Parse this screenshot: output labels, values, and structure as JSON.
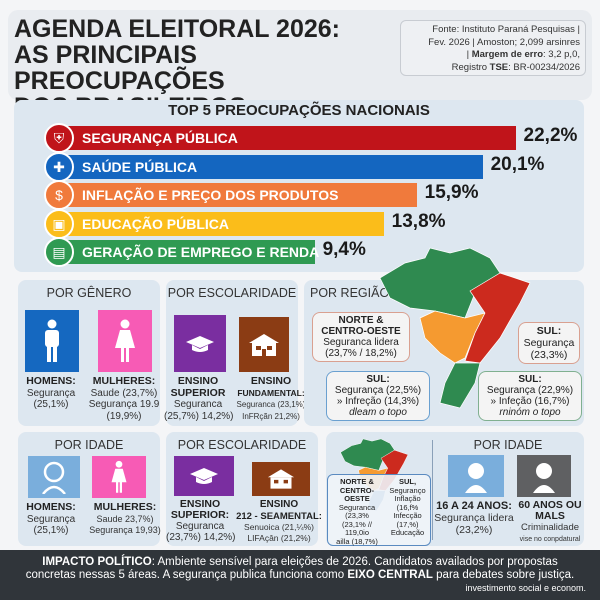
{
  "header": {
    "title_lines": [
      "AGENDA ELEITORAL 2026:",
      "AS PRINCIPAIS PREOCUPAÇÕES",
      "DOS BRASILEIROS"
    ],
    "source_line1": "Fonte: Instituto Paraná Pesquisas |",
    "source_line2": "Fev. 2026 | Amoston; 2,099 arsinres",
    "source_margin_label": "Margem de erro",
    "source_margin_value": ": 3,2 p,0,",
    "source_reg_prefix": "Registro ",
    "source_reg_label": "TSE",
    "source_reg_value": ": BR-00234/2026"
  },
  "chart_data": {
    "type": "bar",
    "title": "TOP 5 PREOCUPAÇÕES NACIONAIS",
    "categories": [
      "SEGURANÇA PÚBLICA",
      "SAÚDE PÚBLICA",
      "INFLAÇÃO E PREÇO DOS PRODUTOS",
      "EDUCAÇÃO PÚBLICA",
      "GERAÇÃO DE EMPREGO E RENDA"
    ],
    "values": [
      22.2,
      20.1,
      15.9,
      13.8,
      9.4
    ],
    "labels": [
      "22,2%",
      "20,1%",
      "15,9%",
      "13,8%",
      "9,4%"
    ],
    "colors": [
      "#c0141a",
      "#1466c0",
      "#f07a3c",
      "#fbbd1a",
      "#2f9a52"
    ],
    "icons": [
      "shield-icon",
      "medical-cross-icon",
      "money-bag-icon",
      "briefcase-icon",
      "cash-register-icon"
    ],
    "xlabel": "",
    "ylabel": ""
  },
  "genero": {
    "title": "POR GÊNERO",
    "homens_label": "HOMENS:",
    "homens_l1": "Segurança",
    "homens_l2": "(25,1%)",
    "mulheres_label": "MULHERES:",
    "mulheres_l1": "Saude (23,7%)",
    "mulheres_l2": "Segurança 19.9",
    "mulheres_l3": "(19,9%)"
  },
  "escolaridade": {
    "title": "POR ESCOLARIDADE",
    "sup_label1": "ENSINO",
    "sup_label2": "SUPERIOR",
    "sup_l1": "Seguranca",
    "sup_l2": "(25,7%) 14,2%)",
    "fund_label1": "ENSINO",
    "fund_label2": "FUNDAMENTAL:",
    "fund_l1": "Seguranca (23,1%)",
    "fund_l2": "InFRçãn 21,2%)"
  },
  "regiao": {
    "title": "POR REGIÃO",
    "norte_title1": "NORTE &",
    "norte_title2": "CENTRO-OESTE",
    "norte_l1": "Seguranca lidera",
    "norte_l2": "(23,7% / 18,2%)",
    "ne_title": "SUL:",
    "ne_l1": "Segurança",
    "ne_l2": "(23,3%)",
    "sul1_title": "SUL:",
    "sul1_l1": "Segurança (22,5%)",
    "sul1_l2": "Infreção (14,3%)",
    "sul1_l3": "dleam o topo",
    "sul2_title": "SUL:",
    "sul2_l1": "Segurança (22,9%)",
    "sul2_l2": "Infeção (16,7%)",
    "sul2_l3": "rninóm o topo",
    "colors": {
      "norte": "#2f8a50",
      "centro": "#f59a30",
      "nordeste": "#cc2a1e"
    }
  },
  "idade": {
    "title": "POR IDADE",
    "homens_label": "HOMENS:",
    "homens_l1": "Segurança",
    "homens_l2": "(25,1%)",
    "mulheres_label": "MULHERES:",
    "mulheres_l1": "Saude 23,7%)",
    "mulheres_l2": "Segurança 19,93)"
  },
  "escolaridade2": {
    "title": "POR ESCOLARIDADE",
    "sup_label1": "ENSINO",
    "sup_label2": "SUPERIOR:",
    "sup_l1": "Seguranca",
    "sup_l2": "(23,7%) 14,2%)",
    "fund_label1": "ENSINO",
    "fund_label2": "212 - SEAMENTAL:",
    "fund_l1": "Senuoica (21,¼%)",
    "fund_l2": "LIFAçân (21,2%)"
  },
  "mini_regiao": {
    "norte1": "NORTE &",
    "norte2": "CENTRO-OESTE",
    "norte_l1": "Seguranca (23,3%",
    "norte_l2": "(23,1% // 119,0io",
    "norte_l3": "ailla (18,7%)",
    "sul_title": "SUL,",
    "sul_l1": "Seguranço",
    "sul_l2": "Inflação (16,f%",
    "sul_l3": "Infecção (17,%)",
    "sul_l4": "Educação"
  },
  "idade2": {
    "title": "POR IDADE",
    "jovem_label": "16 A 24 ANOS:",
    "jovem_l1": "Segurança lidera",
    "jovem_l2": "(23,2%)",
    "idoso_label1": "60 ANOS OU",
    "idoso_label2": "MALS",
    "idoso_l1": "Criminalidade",
    "idoso_l2": "vise no conpdatural"
  },
  "footer": {
    "label": "IMPACTO POLÍTICO",
    "text1": ": Ambiente sensível para eleições de 2026. Candidatos availados por propostas",
    "text2a": "concretas nessas 5 áreas. A segurança publica funciona como ",
    "text2b": "EIXO CENTRAL",
    "text2c": " para debates sobre justiça.",
    "text3": "investimento social e econom."
  }
}
